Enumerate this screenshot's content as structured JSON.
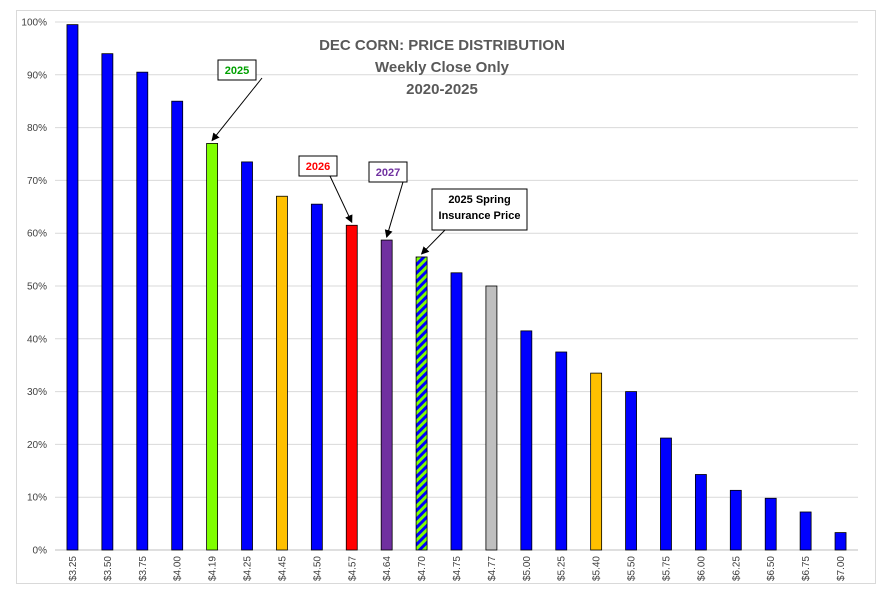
{
  "chart_data": {
    "type": "bar",
    "title_lines": [
      "DEC CORN: PRICE DISTRIBUTION",
      "Weekly Close Only",
      "2020-2025"
    ],
    "categories": [
      "$3.25",
      "$3.50",
      "$3.75",
      "$4.00",
      "$4.19",
      "$4.25",
      "$4.45",
      "$4.50",
      "$4.57",
      "$4.64",
      "$4.70",
      "$4.75",
      "$4.77",
      "$5.00",
      "$5.25",
      "$5.40",
      "$5.50",
      "$5.75",
      "$6.00",
      "$6.25",
      "$6.50",
      "$6.75",
      "$7.00"
    ],
    "values": [
      99.5,
      94,
      90.5,
      85,
      77,
      73.5,
      67,
      65.5,
      61.5,
      58.7,
      55.5,
      52.5,
      50,
      41.5,
      37.5,
      33.5,
      30,
      21.2,
      14.3,
      11.3,
      9.8,
      7.2,
      3.3
    ],
    "colors": [
      "#0000ff",
      "#0000ff",
      "#0000ff",
      "#0000ff",
      "#7fff00",
      "#0000ff",
      "#ffc000",
      "#0000ff",
      "#ff0000",
      "#7030a0",
      "hatch",
      "#0000ff",
      "#bfbfbf",
      "#0000ff",
      "#0000ff",
      "#ffc000",
      "#0000ff",
      "#0000ff",
      "#0000ff",
      "#0000ff",
      "#0000ff",
      "#0000ff",
      "#0000ff"
    ],
    "ylim": [
      0,
      100
    ],
    "yticks": [
      "0%",
      "10%",
      "20%",
      "30%",
      "40%",
      "50%",
      "60%",
      "70%",
      "80%",
      "90%",
      "100%"
    ],
    "grid": true,
    "annotations": [
      {
        "lines": [
          "2025"
        ],
        "color": "#00a000",
        "target_index": 4
      },
      {
        "lines": [
          "2026"
        ],
        "color": "#ff0000",
        "target_index": 8
      },
      {
        "lines": [
          "2027"
        ],
        "color": "#7030a0",
        "target_index": 9
      },
      {
        "lines": [
          "2025 Spring",
          "Insurance Price"
        ],
        "color": "#000000",
        "target_index": 10
      }
    ]
  }
}
